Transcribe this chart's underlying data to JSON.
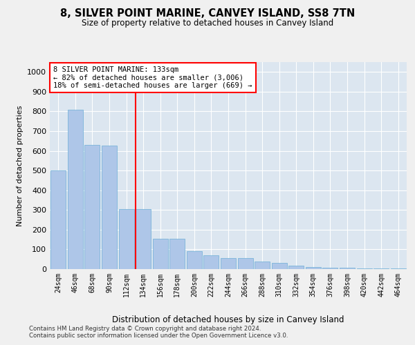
{
  "title": "8, SILVER POINT MARINE, CANVEY ISLAND, SS8 7TN",
  "subtitle": "Size of property relative to detached houses in Canvey Island",
  "xlabel": "Distribution of detached houses by size in Canvey Island",
  "ylabel": "Number of detached properties",
  "bar_color": "#aec6e8",
  "bar_edge_color": "#6baed6",
  "background_color": "#dce6f0",
  "grid_color": "#ffffff",
  "fig_facecolor": "#f0f0f0",
  "categories": [
    "24sqm",
    "46sqm",
    "68sqm",
    "90sqm",
    "112sqm",
    "134sqm",
    "156sqm",
    "178sqm",
    "200sqm",
    "222sqm",
    "244sqm",
    "266sqm",
    "288sqm",
    "310sqm",
    "332sqm",
    "354sqm",
    "376sqm",
    "398sqm",
    "420sqm",
    "442sqm",
    "464sqm"
  ],
  "values": [
    500,
    810,
    630,
    625,
    305,
    305,
    155,
    155,
    90,
    70,
    55,
    55,
    38,
    30,
    18,
    12,
    8,
    8,
    5,
    5,
    5
  ],
  "ylim": [
    0,
    1050
  ],
  "yticks": [
    0,
    100,
    200,
    300,
    400,
    500,
    600,
    700,
    800,
    900,
    1000
  ],
  "red_line_index": 5,
  "annotation_line1": "8 SILVER POINT MARINE: 133sqm",
  "annotation_line2": "← 82% of detached houses are smaller (3,006)",
  "annotation_line3": "18% of semi-detached houses are larger (669) →",
  "footnote1": "Contains HM Land Registry data © Crown copyright and database right 2024.",
  "footnote2": "Contains public sector information licensed under the Open Government Licence v3.0."
}
